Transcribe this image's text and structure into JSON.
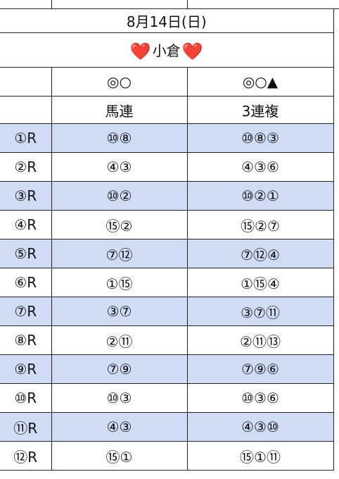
{
  "header": {
    "date": "8月14日(日)",
    "venue": "小倉",
    "heart_symbol": "❤️",
    "accent_color": "#e0211b"
  },
  "columns": [
    {
      "marks": "◎○",
      "type": "馬連"
    },
    {
      "marks": "◎○▲",
      "type": "3連複"
    }
  ],
  "row_shade_color": "#cfdcf3",
  "races": [
    {
      "race": "①R",
      "umaren": "⑩⑧",
      "sanrenpuku": "⑩⑧③",
      "shaded": true
    },
    {
      "race": "②R",
      "umaren": "④③",
      "sanrenpuku": "④③⑥",
      "shaded": false
    },
    {
      "race": "③R",
      "umaren": "⑩②",
      "sanrenpuku": "⑩②①",
      "shaded": true
    },
    {
      "race": "④R",
      "umaren": "⑮②",
      "sanrenpuku": "⑮②⑦",
      "shaded": false
    },
    {
      "race": "⑤R",
      "umaren": "⑦⑫",
      "sanrenpuku": "⑦⑫④",
      "shaded": true
    },
    {
      "race": "⑥R",
      "umaren": "①⑮",
      "sanrenpuku": "①⑮④",
      "shaded": false
    },
    {
      "race": "⑦R",
      "umaren": "③⑦",
      "sanrenpuku": "③⑦⑪",
      "shaded": true
    },
    {
      "race": "⑧R",
      "umaren": "②⑪",
      "sanrenpuku": "②⑪⑬",
      "shaded": false
    },
    {
      "race": "⑨R",
      "umaren": "⑦⑨",
      "sanrenpuku": "⑦⑨⑥",
      "shaded": true
    },
    {
      "race": "⑩R",
      "umaren": "⑩③",
      "sanrenpuku": "⑩③⑥",
      "shaded": false
    },
    {
      "race": "⑪R",
      "umaren": "④③",
      "sanrenpuku": "④③⑩",
      "shaded": true
    },
    {
      "race": "⑫R",
      "umaren": "⑮①",
      "sanrenpuku": "⑮①⑪",
      "shaded": false
    }
  ]
}
